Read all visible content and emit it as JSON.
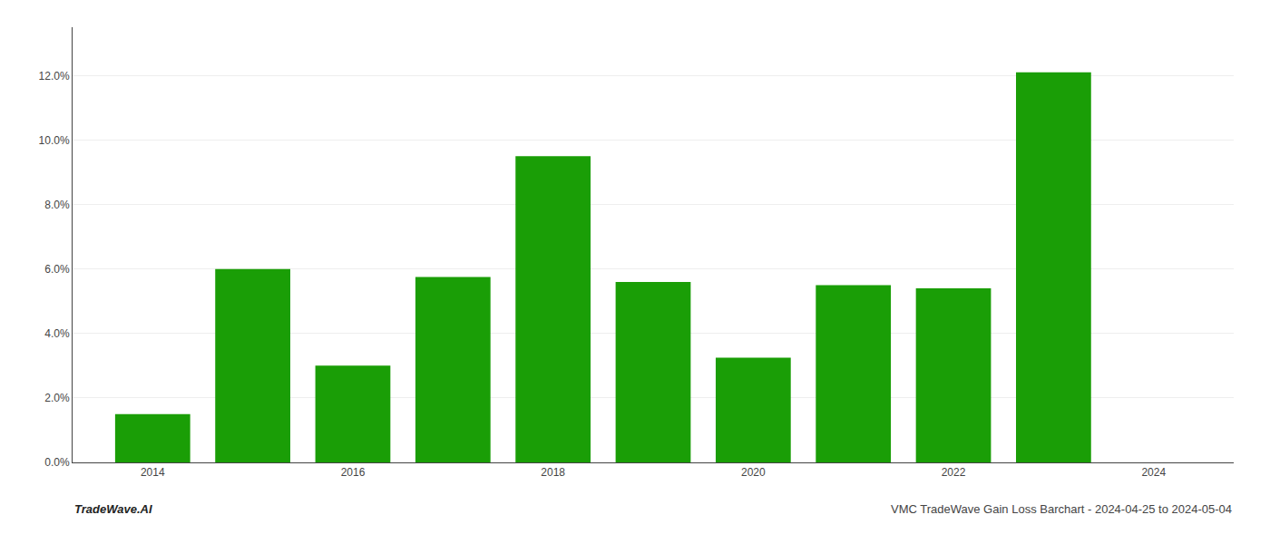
{
  "chart_data": {
    "type": "bar",
    "x": [
      2014,
      2015,
      2016,
      2017,
      2018,
      2019,
      2020,
      2021,
      2022,
      2023
    ],
    "values": [
      0.015,
      0.06,
      0.03,
      0.0575,
      0.095,
      0.056,
      0.0325,
      0.055,
      0.054,
      0.121
    ],
    "color": "#1a9e06",
    "xlim": [
      2013.2,
      2024.8
    ],
    "xticks": [
      2014,
      2016,
      2018,
      2020,
      2022,
      2024
    ],
    "ylim": [
      0,
      0.135
    ],
    "yticks": [
      {
        "value": 0.0,
        "label": "0.0%"
      },
      {
        "value": 0.02,
        "label": "2.0%"
      },
      {
        "value": 0.04,
        "label": "4.0%"
      },
      {
        "value": 0.06,
        "label": "6.0%"
      },
      {
        "value": 0.08,
        "label": "8.0%"
      },
      {
        "value": 0.1,
        "label": "10.0%"
      },
      {
        "value": 0.12,
        "label": "12.0%"
      }
    ],
    "grid": true,
    "annotations": [
      "TradeWave.AI",
      "VMC TradeWave Gain Loss Barchart - 2024-04-25 to 2024-05-04"
    ]
  }
}
